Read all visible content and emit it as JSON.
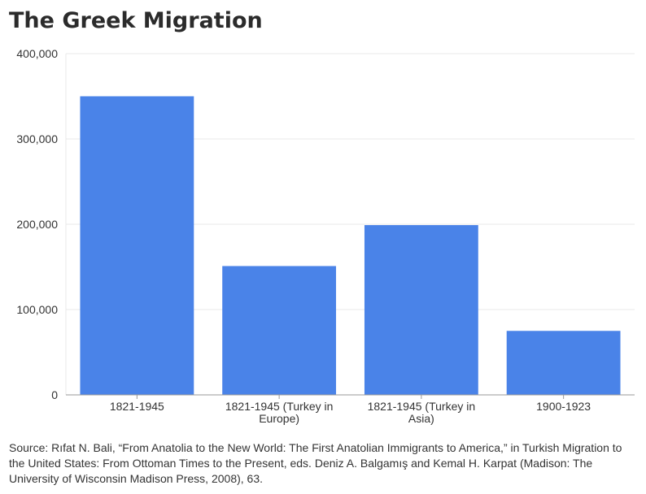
{
  "title": "The Greek Migration",
  "source": "Source: Rıfat N. Bali, “From Anatolia to the New World: The First Anatolian Immigrants to America,” in Turkish Migration to the United States: From Ottoman Times to the Present, eds. Deniz A. Balgamış and Kemal H. Karpat (Madison: The University of Wisconsin Madison Press, 2008), 63.",
  "colors": {
    "bar": "#4a83e8",
    "grid": "#e8e8e8",
    "axis": "#999999"
  },
  "chart_data": {
    "type": "bar",
    "title": "The Greek Migration",
    "xlabel": "",
    "ylabel": "",
    "ylim": [
      0,
      400000
    ],
    "yticks": [
      0,
      100000,
      200000,
      300000,
      400000
    ],
    "ytick_labels": [
      "0",
      "100,000",
      "200,000",
      "300,000",
      "400,000"
    ],
    "grid": true,
    "categories": [
      [
        "1821-1945"
      ],
      [
        "1821-1945 (Turkey in",
        "Europe)"
      ],
      [
        "1821-1945 (Turkey in",
        "Asia)"
      ],
      [
        "1900-1923"
      ]
    ],
    "values": [
      350000,
      151000,
      199000,
      75000
    ]
  }
}
